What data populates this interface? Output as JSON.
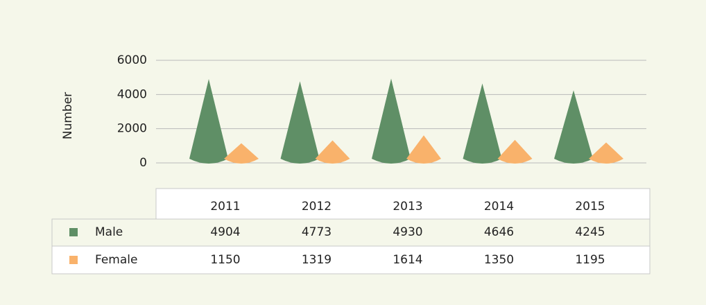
{
  "chart_data": {
    "type": "bar",
    "y_label": "Number",
    "categories": [
      "2011",
      "2012",
      "2013",
      "2014",
      "2015"
    ],
    "series": [
      {
        "name": "Male",
        "color": "#5f8f66",
        "values": [
          4904,
          4773,
          4930,
          4646,
          4245
        ]
      },
      {
        "name": "Female",
        "color": "#f9b26b",
        "values": [
          1150,
          1319,
          1614,
          1350,
          1195
        ]
      }
    ],
    "ylim": [
      0,
      6000
    ],
    "yticks": [
      0,
      2000,
      4000,
      6000
    ],
    "grid": true
  }
}
